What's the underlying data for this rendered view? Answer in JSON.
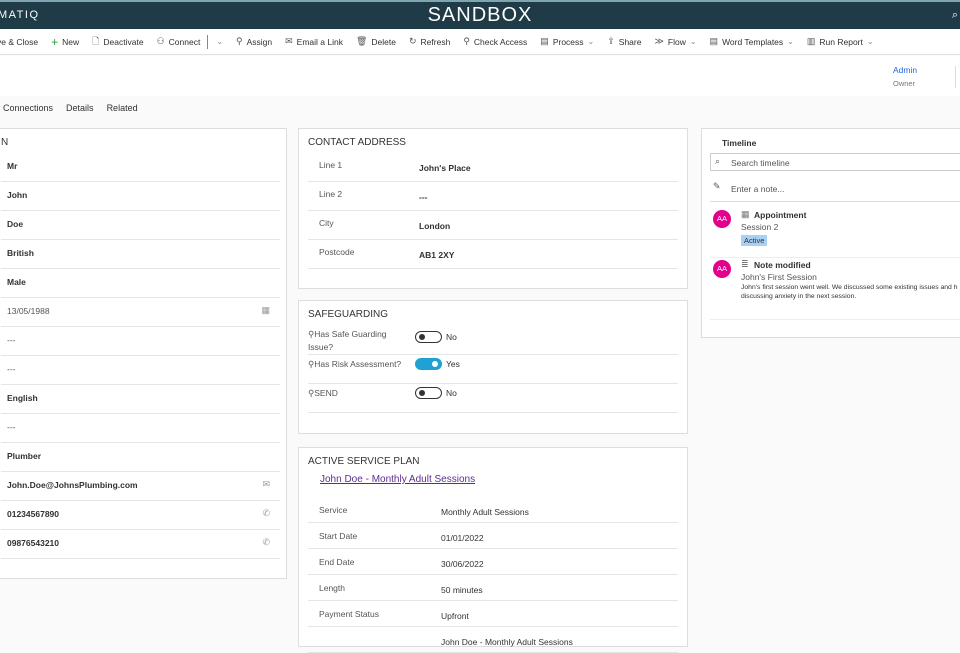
{
  "app": {
    "brand": "MATIQ",
    "environment": "SANDBOX"
  },
  "toolbar": [
    {
      "label": "ve & Close",
      "icon": "save-icon"
    },
    {
      "label": "New",
      "icon": "plus-icon"
    },
    {
      "label": "Deactivate",
      "icon": "deactivate-icon"
    },
    {
      "label": "Connect",
      "icon": "connect-icon",
      "split": true
    },
    {
      "label": "Assign",
      "icon": "assign-icon"
    },
    {
      "label": "Email a Link",
      "icon": "email-link-icon"
    },
    {
      "label": "Delete",
      "icon": "trash-icon"
    },
    {
      "label": "Refresh",
      "icon": "refresh-icon"
    },
    {
      "label": "Check Access",
      "icon": "check-access-icon"
    },
    {
      "label": "Process",
      "icon": "process-icon",
      "dropdown": true
    },
    {
      "label": "Share",
      "icon": "share-icon"
    },
    {
      "label": "Flow",
      "icon": "flow-icon",
      "dropdown": true
    },
    {
      "label": "Word Templates",
      "icon": "word-icon",
      "dropdown": true
    },
    {
      "label": "Run Report",
      "icon": "report-icon",
      "dropdown": true
    }
  ],
  "header": {
    "owner_name": "Admin",
    "owner_label": "Owner"
  },
  "tabs": [
    "Connections",
    "Details",
    "Related"
  ],
  "left_section": {
    "title": "N",
    "values": [
      {
        "v": "Mr"
      },
      {
        "v": "John"
      },
      {
        "v": "Doe"
      },
      {
        "v": "British"
      },
      {
        "v": "Male"
      },
      {
        "v": "13/05/1988",
        "light": true,
        "icon": "calendar-icon"
      },
      {
        "v": "---",
        "light": true
      },
      {
        "v": "---",
        "light": true
      },
      {
        "v": "English"
      },
      {
        "v": "---",
        "light": true
      },
      {
        "v": "Plumber"
      },
      {
        "v": "John.Doe@JohnsPlumbing.com",
        "icon": "email-icon"
      },
      {
        "v": "01234567890",
        "icon": "phone-icon"
      },
      {
        "v": "09876543210",
        "icon": "phone-icon"
      }
    ]
  },
  "address": {
    "title": "CONTACT ADDRESS",
    "rows": [
      {
        "k": "Line 1",
        "v": "John's Place"
      },
      {
        "k": "Line 2",
        "v": "---"
      },
      {
        "k": "City",
        "v": "London"
      },
      {
        "k": "Postcode",
        "v": "AB1 2XY"
      }
    ]
  },
  "safeguarding": {
    "title": "SAFEGUARDING",
    "rows": [
      {
        "k": "Has Safe Guarding Issue?",
        "v": "No",
        "on": false
      },
      {
        "k": "Has Risk Assessment?",
        "v": "Yes",
        "on": true
      },
      {
        "k": "SEND",
        "v": "No",
        "on": false
      }
    ]
  },
  "service_plan": {
    "title": "ACTIVE SERVICE PLAN",
    "link": "John Doe - Monthly Adult Sessions",
    "rows": [
      {
        "k": "Service",
        "v": "Monthly Adult Sessions"
      },
      {
        "k": "Start Date",
        "v": "01/01/2022"
      },
      {
        "k": "End Date",
        "v": "30/06/2022"
      },
      {
        "k": "Length",
        "v": "50 minutes"
      },
      {
        "k": "Payment Status",
        "v": "Upfront"
      },
      {
        "k": "",
        "v": "John Doe - Monthly Adult Sessions"
      }
    ]
  },
  "timeline": {
    "title": "Timeline",
    "search_placeholder": "Search timeline",
    "note_placeholder": "Enter a note...",
    "items": [
      {
        "avatar": "AA",
        "type": "Appointment",
        "icon": "calendar-icon",
        "subtitle": "Session 2",
        "badge": "Active"
      },
      {
        "avatar": "AA",
        "type": "Note modified",
        "icon": "note-icon",
        "subtitle": "John's First Session",
        "body": "John's first session went well. We discussed some existing issues and h discussing anxiety in the next session."
      }
    ]
  }
}
